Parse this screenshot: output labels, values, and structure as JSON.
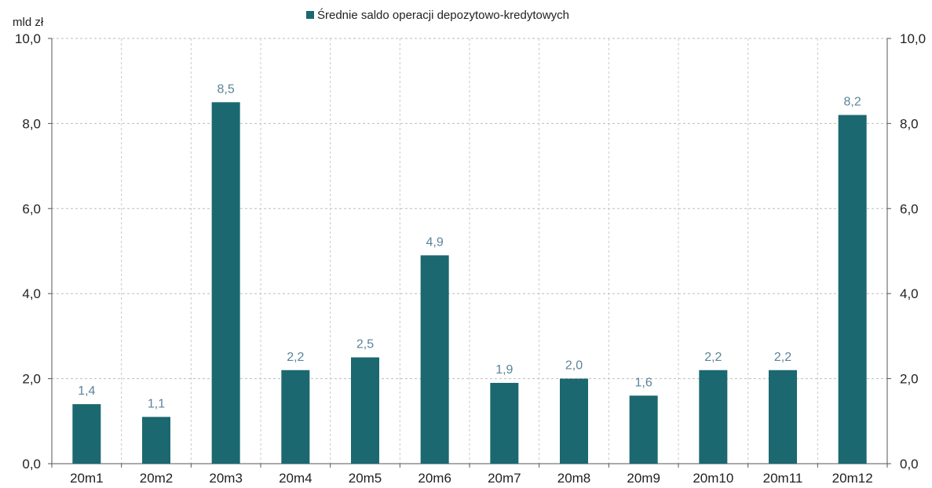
{
  "chart_data": {
    "type": "bar",
    "series": [
      {
        "name": "Średnie saldo operacji depozytowo-kredytowych",
        "color": "#1b6870",
        "values": [
          1.4,
          1.1,
          8.5,
          2.2,
          2.5,
          4.9,
          1.9,
          2.0,
          1.6,
          2.2,
          2.2,
          8.2
        ]
      }
    ],
    "categories": [
      "20m1",
      "20m2",
      "20m3",
      "20m4",
      "20m5",
      "20m6",
      "20m7",
      "20m8",
      "20m9",
      "20m10",
      "20m11",
      "20m12"
    ],
    "data_labels": [
      "1,4",
      "1,1",
      "8,5",
      "2,2",
      "2,5",
      "4,9",
      "1,9",
      "2,0",
      "1,6",
      "2,2",
      "2,2",
      "8,2"
    ],
    "y_ticks": [
      {
        "value": 0,
        "label": "0,0"
      },
      {
        "value": 2,
        "label": "2,0"
      },
      {
        "value": 4,
        "label": "4,0"
      },
      {
        "value": 6,
        "label": "6,0"
      },
      {
        "value": 8,
        "label": "8,0"
      },
      {
        "value": 10,
        "label": "10,0"
      }
    ],
    "y_unit_label": "mld zł",
    "ylim": [
      0,
      10
    ],
    "xlabel": "",
    "ylabel": "",
    "grid": true,
    "legend_position": "top-center",
    "dual_y_axis": true,
    "data_label_color": "#5b8499"
  }
}
